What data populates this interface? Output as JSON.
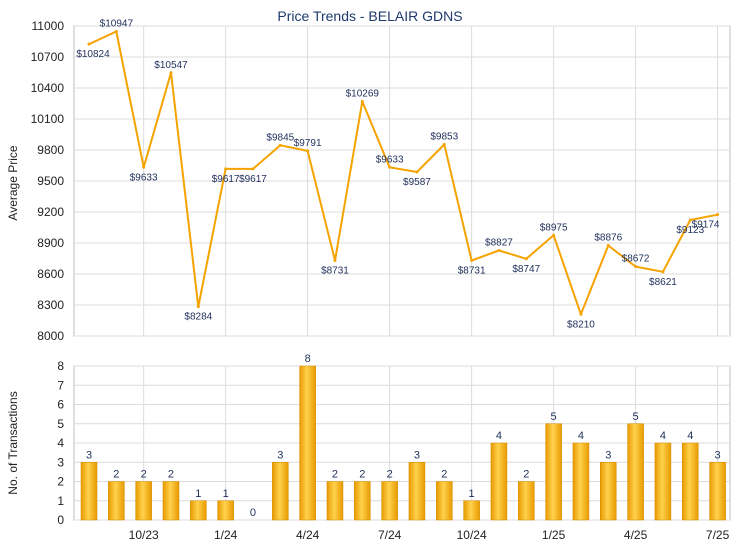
{
  "chart_data": [
    {
      "type": "line",
      "title": "Price Trends - BELAIR GDNS",
      "ylabel": "Average Price",
      "ylim": [
        8000,
        11000
      ],
      "yticks": [
        8000,
        8300,
        8600,
        8900,
        9200,
        9500,
        9800,
        10100,
        10400,
        10700,
        11000
      ],
      "grid": true,
      "values": [
        10824,
        10947,
        9633,
        10547,
        8284,
        9617,
        9617,
        9845,
        9791,
        8731,
        10269,
        9633,
        9587,
        9853,
        8731,
        8827,
        8747,
        8975,
        8210,
        8876,
        8672,
        8621,
        9123,
        9174
      ],
      "labels": [
        "$10824",
        "$10947",
        "$9633",
        "$10547",
        "$8284",
        "$9617",
        "$9617",
        "$9845",
        "$9791",
        "$8731",
        "$10269",
        "$9633",
        "$9587",
        "$9853",
        "$8731",
        "$8827",
        "$8747",
        "$8975",
        "$8210",
        "$8876",
        "$8672",
        "$8621",
        "$9123",
        "$9174"
      ],
      "line_color": "#f5a300"
    },
    {
      "type": "bar",
      "ylabel": "No. of Transactions",
      "ylim": [
        0,
        8
      ],
      "yticks": [
        0,
        1,
        2,
        3,
        4,
        5,
        6,
        7,
        8
      ],
      "grid": true,
      "values": [
        3,
        2,
        2,
        2,
        1,
        1,
        0,
        3,
        8,
        2,
        2,
        2,
        3,
        2,
        1,
        4,
        2,
        5,
        4,
        3,
        5,
        4,
        4,
        3
      ],
      "x_tick_labels": [
        {
          "index": 2,
          "label": "10/23"
        },
        {
          "index": 5,
          "label": "1/24"
        },
        {
          "index": 8,
          "label": "4/24"
        },
        {
          "index": 11,
          "label": "7/24"
        },
        {
          "index": 14,
          "label": "10/24"
        },
        {
          "index": 17,
          "label": "1/25"
        },
        {
          "index": 20,
          "label": "4/25"
        },
        {
          "index": 23,
          "label": "7/25"
        }
      ],
      "bar_color": "#f5a300"
    }
  ]
}
